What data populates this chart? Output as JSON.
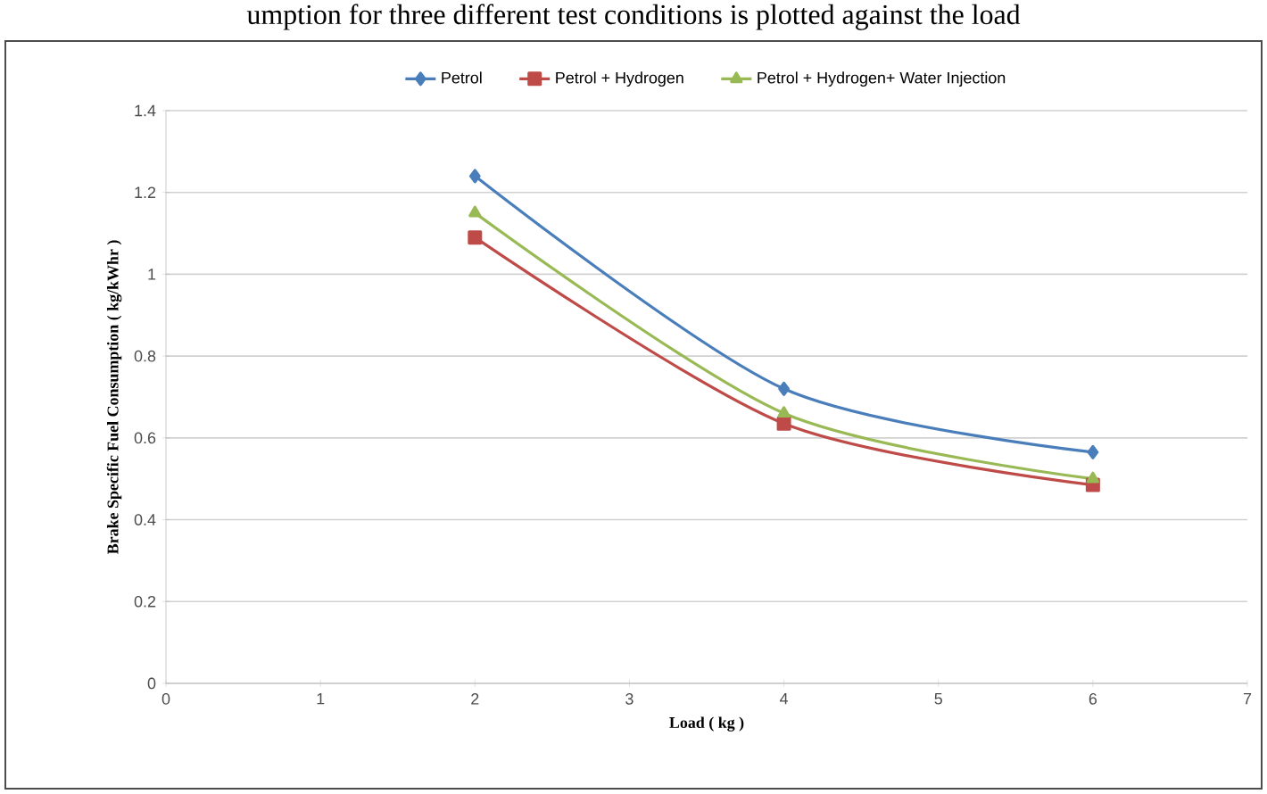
{
  "chart_data": {
    "type": "line",
    "xlabel": "Load ( kg )",
    "ylabel": "Brake Specific Fuel Consumption ( kg/kWhr )",
    "annotations": [
      "umption for three different test conditions is plotted against the load"
    ],
    "x": [
      2,
      4,
      6
    ],
    "series": [
      {
        "name": "Petrol",
        "color": "#4a7ebb",
        "marker": "diamond",
        "values": [
          1.24,
          0.72,
          0.565
        ]
      },
      {
        "name": "Petrol + Hydrogen",
        "color": "#be4b48",
        "marker": "square",
        "values": [
          1.09,
          0.635,
          0.485
        ]
      },
      {
        "name": "Petrol + Hydrogen+ Water Injection",
        "color": "#98b954",
        "marker": "triangle",
        "values": [
          1.15,
          0.66,
          0.5
        ]
      }
    ],
    "xlim": [
      0,
      7
    ],
    "xticks": [
      0,
      1,
      2,
      3,
      4,
      5,
      6,
      7
    ],
    "ylim": [
      0,
      1.4
    ],
    "yticks": [
      0,
      0.2,
      0.4,
      0.6,
      0.8,
      1,
      1.2,
      1.4
    ],
    "grid": "y",
    "legend": "top"
  }
}
